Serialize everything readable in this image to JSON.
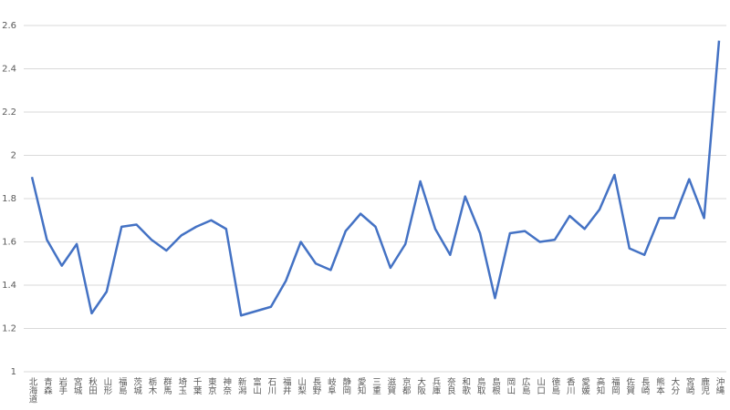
{
  "chart_data": {
    "type": "line",
    "categories": [
      "北海道",
      "青森",
      "岩手",
      "宮城",
      "秋田",
      "山形",
      "福島",
      "茨城",
      "栃木",
      "群馬",
      "埼玉",
      "千葉",
      "東京",
      "神奈",
      "新潟",
      "富山",
      "石川",
      "福井",
      "山梨",
      "長野",
      "岐阜",
      "静岡",
      "愛知",
      "三重",
      "滋賀",
      "京都",
      "大阪",
      "兵庫",
      "奈良",
      "和歌",
      "鳥取",
      "島根",
      "岡山",
      "広島",
      "山口",
      "徳島",
      "香川",
      "愛媛",
      "高知",
      "福岡",
      "佐賀",
      "長崎",
      "熊本",
      "大分",
      "宮崎",
      "鹿児",
      "沖縄"
    ],
    "series": [
      {
        "color": "#4472c4",
        "values": [
          1.9,
          1.61,
          1.49,
          1.59,
          1.27,
          1.37,
          1.67,
          1.68,
          1.61,
          1.56,
          1.63,
          1.67,
          1.7,
          1.66,
          1.26,
          1.28,
          1.3,
          1.42,
          1.6,
          1.5,
          1.47,
          1.65,
          1.73,
          1.67,
          1.48,
          1.59,
          1.88,
          1.66,
          1.54,
          1.81,
          1.64,
          1.34,
          1.64,
          1.65,
          1.6,
          1.61,
          1.72,
          1.66,
          1.75,
          1.91,
          1.57,
          1.54,
          1.71,
          1.71,
          1.89,
          1.71,
          2.53
        ]
      }
    ],
    "ylim": [
      1,
      2.6
    ],
    "yticks": [
      1,
      1.2,
      1.4,
      1.6,
      1.8,
      2,
      2.2,
      2.4,
      2.6
    ],
    "grid": true
  }
}
